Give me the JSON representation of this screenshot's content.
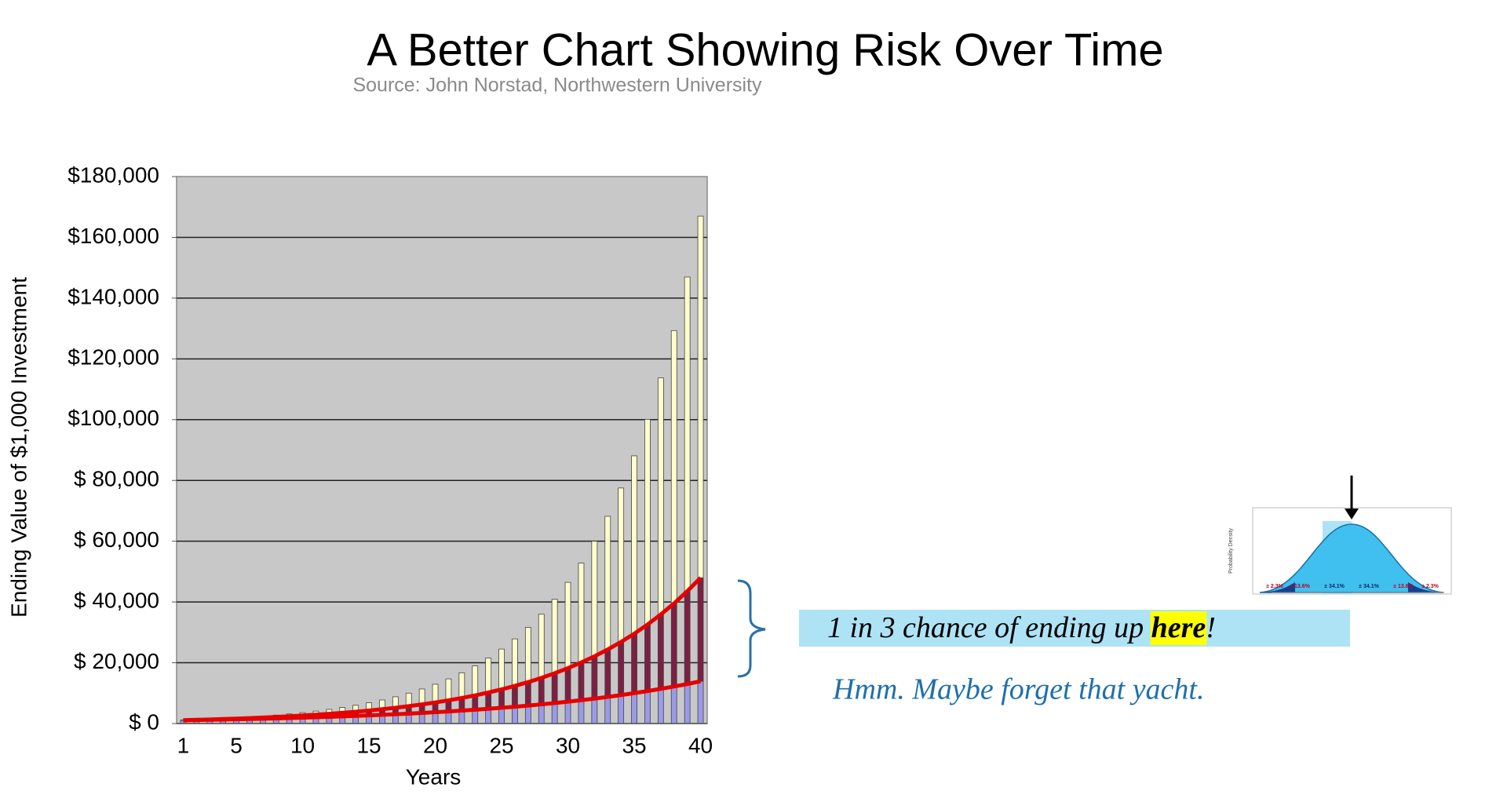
{
  "chart_data": {
    "type": "stacked-bar",
    "title": "A Better Chart Showing Risk Over Time",
    "subtitle": "Source: John Norstad, Northwestern University",
    "y_label": "Ending Value of $1,000 Investment",
    "x_label": "Years",
    "categories": [
      "1",
      null,
      null,
      null,
      "5",
      null,
      null,
      null,
      null,
      "10",
      null,
      null,
      null,
      null,
      "15",
      null,
      null,
      null,
      null,
      "20",
      null,
      null,
      null,
      null,
      "25",
      null,
      null,
      null,
      null,
      "30",
      null,
      null,
      null,
      null,
      "35",
      null,
      null,
      null,
      null,
      "40"
    ],
    "series": [
      {
        "color": "#9a9ae8",
        "line_color": "#e60000",
        "values": [
          1068,
          1141,
          1218,
          1301,
          1390,
          1484,
          1585,
          1693,
          1808,
          1931,
          2062,
          2202,
          2352,
          2512,
          2683,
          2865,
          3060,
          3268,
          3490,
          3728,
          3981,
          4252,
          4541,
          4850,
          5180,
          5532,
          5908,
          6310,
          6739,
          7197,
          7687,
          8209,
          8768,
          9364,
          10000,
          10680,
          11406,
          12182,
          13010,
          13895
        ]
      },
      {
        "color": "#7d1f42",
        "line_color": "#e60000",
        "values": [
          34,
          73,
          119,
          172,
          232,
          303,
          384,
          476,
          581,
          701,
          837,
          992,
          1166,
          1364,
          1587,
          1838,
          2121,
          2440,
          2797,
          3198,
          3649,
          4153,
          4718,
          5350,
          6056,
          6845,
          7727,
          8710,
          9807,
          11030,
          12392,
          13910,
          15598,
          17477,
          19568,
          21892,
          24475,
          27344,
          30532,
          34070
        ]
      },
      {
        "color": "#ffffcc",
        "values": [
          35,
          78,
          131,
          195,
          274,
          368,
          480,
          614,
          774,
          963,
          1186,
          1449,
          1759,
          2121,
          2545,
          3043,
          3622,
          4297,
          5083,
          5996,
          7056,
          8286,
          9710,
          11359,
          13266,
          15469,
          18012,
          20947,
          24331,
          28230,
          32719,
          37886,
          43830,
          50664,
          58517,
          67536,
          77892,
          89777,
          103411,
          119047
        ]
      }
    ],
    "ylim": [
      0,
      180000
    ],
    "yticks": [
      {
        "value": 0,
        "label": "$ 0"
      },
      {
        "value": 20000,
        "label": "$ 20,000"
      },
      {
        "value": 40000,
        "label": "$ 40,000"
      },
      {
        "value": 60000,
        "label": "$ 60,000"
      },
      {
        "value": 80000,
        "label": "$ 80,000"
      },
      {
        "value": 100000,
        "label": "$100,000"
      },
      {
        "value": 120000,
        "label": "$120,000"
      },
      {
        "value": 140000,
        "label": "$140,000"
      },
      {
        "value": 160000,
        "label": "$160,000"
      },
      {
        "value": 180000,
        "label": "$180,000"
      }
    ],
    "grid": true,
    "annotation": {
      "before": "1 in 3 chance of ending up ",
      "highlight": "here",
      "after": "!"
    },
    "comment": "Hmm. Maybe forget that yacht.",
    "inset": {
      "y_label": "Probability Density",
      "labels": [
        "± 2.3%",
        "± 13.6%",
        "± 34.1%",
        "± 34.1%",
        "± 13.6%",
        "± 2.3%"
      ]
    }
  }
}
